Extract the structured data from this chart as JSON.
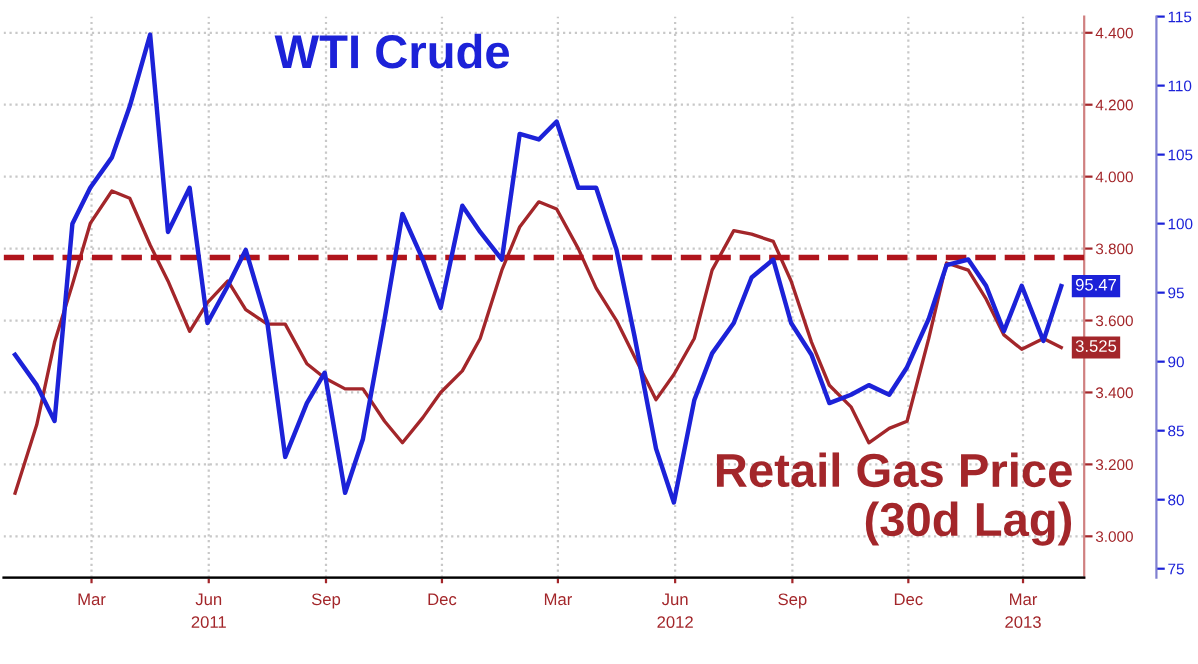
{
  "chart_data": {
    "type": "line",
    "x": [
      "2011-01-15",
      "2011-02-01",
      "2011-02-15",
      "2011-03-01",
      "2011-03-15",
      "2011-04-01",
      "2011-04-15",
      "2011-05-01",
      "2011-05-15",
      "2011-06-01",
      "2011-06-15",
      "2011-07-01",
      "2011-07-15",
      "2011-08-01",
      "2011-08-15",
      "2011-09-01",
      "2011-09-15",
      "2011-10-01",
      "2011-10-15",
      "2011-11-01",
      "2011-11-15",
      "2011-12-01",
      "2011-12-15",
      "2012-01-01",
      "2012-01-15",
      "2012-02-01",
      "2012-02-15",
      "2012-03-01",
      "2012-03-15",
      "2012-04-01",
      "2012-04-15",
      "2012-05-01",
      "2012-05-15",
      "2012-06-01",
      "2012-06-15",
      "2012-07-01",
      "2012-07-15",
      "2012-08-01",
      "2012-08-15",
      "2012-09-01",
      "2012-09-15",
      "2012-10-01",
      "2012-10-15",
      "2012-11-01",
      "2012-11-15",
      "2012-12-01",
      "2012-12-15",
      "2013-01-01",
      "2013-01-15",
      "2013-02-01",
      "2013-02-15",
      "2013-03-01",
      "2013-03-15",
      "2013-04-01",
      "2013-04-15"
    ],
    "series": [
      {
        "name": "WTI Crude",
        "color": "#1c22d8",
        "axis": "y2",
        "values": [
          90.5,
          88.3,
          85.7,
          100.0,
          102.6,
          104.8,
          108.5,
          113.7,
          99.4,
          102.6,
          92.8,
          95.5,
          98.1,
          92.8,
          83.1,
          87.0,
          89.2,
          80.5,
          84.4,
          93.1,
          100.7,
          97.4,
          93.9,
          101.3,
          99.4,
          97.4,
          106.5,
          106.1,
          107.4,
          102.6,
          102.6,
          98.1,
          91.9,
          83.7,
          79.8,
          87.2,
          90.6,
          92.8,
          96.1,
          97.4,
          92.8,
          90.5,
          87.0,
          87.6,
          88.3,
          87.6,
          89.6,
          93.1,
          97.0,
          97.4,
          95.5,
          92.2,
          95.5,
          91.5,
          95.47
        ],
        "value_labels": [
          null,
          null,
          null,
          null,
          null,
          null,
          null,
          null,
          null,
          null,
          null,
          null,
          null,
          null,
          null,
          null,
          null,
          null,
          null,
          null,
          null,
          null,
          null,
          null,
          null,
          null,
          null,
          null,
          null,
          null,
          null,
          null,
          null,
          null,
          null,
          null,
          null,
          null,
          null,
          null,
          null,
          null,
          null,
          null,
          null,
          null,
          null,
          null,
          null,
          null,
          null,
          null,
          null,
          null,
          "95.47"
        ]
      },
      {
        "name": "Retail Gas Price\n(30d Lag)",
        "color": "#a3262a",
        "values": [
          3.12,
          3.31,
          3.54,
          3.7,
          3.87,
          3.96,
          3.94,
          3.81,
          3.71,
          3.57,
          3.65,
          3.71,
          3.63,
          3.59,
          3.59,
          3.48,
          3.44,
          3.41,
          3.41,
          3.32,
          3.26,
          3.33,
          3.4,
          3.46,
          3.55,
          3.74,
          3.86,
          3.93,
          3.91,
          3.8,
          3.69,
          3.6,
          3.5,
          3.38,
          3.45,
          3.55,
          3.74,
          3.85,
          3.84,
          3.82,
          3.71,
          3.54,
          3.42,
          3.36,
          3.26,
          3.3,
          3.32,
          3.55,
          3.76,
          3.74,
          3.66,
          3.56,
          3.52,
          3.55,
          3.525
        ],
        "value_labels": [
          null,
          null,
          null,
          null,
          null,
          null,
          null,
          null,
          null,
          null,
          null,
          null,
          null,
          null,
          null,
          null,
          null,
          null,
          null,
          null,
          null,
          null,
          null,
          null,
          null,
          null,
          null,
          null,
          null,
          null,
          null,
          null,
          null,
          null,
          null,
          null,
          null,
          null,
          null,
          null,
          null,
          null,
          null,
          null,
          null,
          null,
          null,
          null,
          null,
          null,
          null,
          null,
          null,
          null,
          "3.525"
        ]
      }
    ],
    "xlim": [
      "2011-01-06",
      "2013-05-03"
    ],
    "xticks": [
      {
        "value": "2011-03-16",
        "label": "Mar"
      },
      {
        "value": "2011-06-16",
        "label": "Jun\n2011"
      },
      {
        "value": "2011-09-16",
        "label": "Sep"
      },
      {
        "value": "2011-12-16",
        "label": "Dec"
      },
      {
        "value": "2012-03-16",
        "label": "Mar"
      },
      {
        "value": "2012-06-16",
        "label": "Jun\n2012"
      },
      {
        "value": "2012-09-16",
        "label": "Sep"
      },
      {
        "value": "2012-12-16",
        "label": "Dec"
      },
      {
        "value": "2013-03-16",
        "label": "Mar\n2013"
      }
    ],
    "ylim": [
      2.885,
      4.445
    ],
    "yticks": [
      {
        "value": 3.0,
        "label": "3.000"
      },
      {
        "value": 3.2,
        "label": "3.200"
      },
      {
        "value": 3.4,
        "label": "3.400"
      },
      {
        "value": 3.6,
        "label": "3.600"
      },
      {
        "value": 3.8,
        "label": "3.800"
      },
      {
        "value": 4.0,
        "label": "4.000"
      },
      {
        "value": 4.2,
        "label": "4.200"
      },
      {
        "value": 4.4,
        "label": "4.400"
      }
    ],
    "y2lim": [
      74.35,
      115
    ],
    "y2ticks": [
      75,
      80,
      85,
      90,
      95,
      100,
      105,
      110,
      115
    ],
    "ref_lines": [
      {
        "axis": "y",
        "value": 3.775,
        "color": "#b0141c",
        "line_style": "dashed"
      }
    ],
    "grid": true
  }
}
